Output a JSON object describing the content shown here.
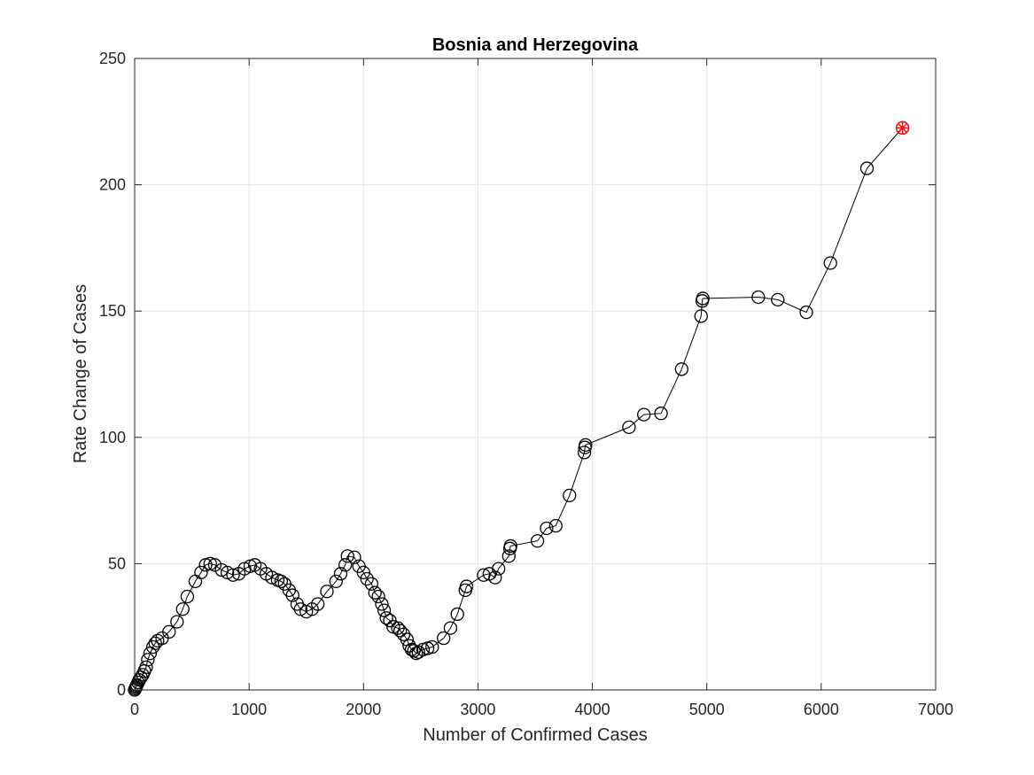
{
  "chart_data": {
    "type": "scatter",
    "title": "Bosnia and Herzegovina",
    "xlabel": "Number of Confirmed Cases",
    "ylabel": "Rate Change of Cases",
    "xlim": [
      0,
      7000
    ],
    "ylim": [
      0,
      250
    ],
    "xticks": [
      "0",
      "1000",
      "2000",
      "3000",
      "4000",
      "5000",
      "6000",
      "7000"
    ],
    "yticks": [
      "0",
      "50",
      "100",
      "150",
      "200",
      "250"
    ],
    "grid": true,
    "marker": "circle",
    "line": "connected",
    "series": [
      {
        "values": [
          [
            0,
            0
          ],
          [
            5,
            0.5
          ],
          [
            10,
            1
          ],
          [
            15,
            1.5
          ],
          [
            20,
            2
          ],
          [
            30,
            3
          ],
          [
            40,
            4
          ],
          [
            55,
            5
          ],
          [
            70,
            6
          ],
          [
            85,
            7.5
          ],
          [
            100,
            9
          ],
          [
            115,
            12
          ],
          [
            135,
            14.5
          ],
          [
            160,
            17
          ],
          [
            180,
            18.5
          ],
          [
            200,
            19.5
          ],
          [
            240,
            20.5
          ],
          [
            300,
            23
          ],
          [
            370,
            27
          ],
          [
            420,
            32
          ],
          [
            460,
            37
          ],
          [
            530,
            43
          ],
          [
            580,
            46.5
          ],
          [
            620,
            49.5
          ],
          [
            660,
            50
          ],
          [
            700,
            49.5
          ],
          [
            760,
            47.5
          ],
          [
            810,
            46.5
          ],
          [
            860,
            45.5
          ],
          [
            910,
            46
          ],
          [
            960,
            48
          ],
          [
            1010,
            49
          ],
          [
            1050,
            49.5
          ],
          [
            1100,
            48
          ],
          [
            1150,
            46
          ],
          [
            1200,
            44.5
          ],
          [
            1250,
            43.5
          ],
          [
            1280,
            43
          ],
          [
            1310,
            42
          ],
          [
            1350,
            39.5
          ],
          [
            1380,
            37.5
          ],
          [
            1420,
            34
          ],
          [
            1450,
            32
          ],
          [
            1500,
            31
          ],
          [
            1550,
            32
          ],
          [
            1600,
            34
          ],
          [
            1680,
            39
          ],
          [
            1760,
            43
          ],
          [
            1800,
            46
          ],
          [
            1840,
            49.5
          ],
          [
            1860,
            53
          ],
          [
            1920,
            52.5
          ],
          [
            1960,
            49
          ],
          [
            2000,
            46.5
          ],
          [
            2030,
            44
          ],
          [
            2070,
            42
          ],
          [
            2100,
            38.5
          ],
          [
            2130,
            37
          ],
          [
            2160,
            34
          ],
          [
            2180,
            31.5
          ],
          [
            2200,
            28.5
          ],
          [
            2230,
            27.5
          ],
          [
            2260,
            25
          ],
          [
            2300,
            24.5
          ],
          [
            2320,
            23.5
          ],
          [
            2350,
            22
          ],
          [
            2380,
            20
          ],
          [
            2400,
            17.5
          ],
          [
            2420,
            16
          ],
          [
            2440,
            15.5
          ],
          [
            2460,
            14.5
          ],
          [
            2480,
            15
          ],
          [
            2520,
            16
          ],
          [
            2560,
            16.5
          ],
          [
            2600,
            17
          ],
          [
            2700,
            20.5
          ],
          [
            2760,
            24.5
          ],
          [
            2820,
            30
          ],
          [
            2890,
            39.5
          ],
          [
            2900,
            41
          ],
          [
            3050,
            45.5
          ],
          [
            3100,
            46
          ],
          [
            3150,
            44.5
          ],
          [
            3180,
            48
          ],
          [
            3270,
            53
          ],
          [
            3280,
            56
          ],
          [
            3285,
            57
          ],
          [
            3520,
            59
          ],
          [
            3600,
            64
          ],
          [
            3680,
            65
          ],
          [
            3800,
            77
          ],
          [
            3930,
            94
          ],
          [
            3935,
            96
          ],
          [
            3940,
            97
          ],
          [
            4320,
            104
          ],
          [
            4450,
            109
          ],
          [
            4600,
            109.5
          ],
          [
            4780,
            127
          ],
          [
            4950,
            148
          ],
          [
            4960,
            154
          ],
          [
            4965,
            155
          ],
          [
            5450,
            155.5
          ],
          [
            5620,
            154.5
          ],
          [
            5870,
            149.5
          ],
          [
            6080,
            169
          ],
          [
            6400,
            206.5
          ],
          [
            6710,
            222.5
          ]
        ]
      }
    ],
    "highlight_point": [
      6710,
      222.5
    ],
    "colors": {
      "series": "#000000",
      "highlight": "#e8141b",
      "grid": "#e6e6e6",
      "axis": "#262626"
    }
  }
}
